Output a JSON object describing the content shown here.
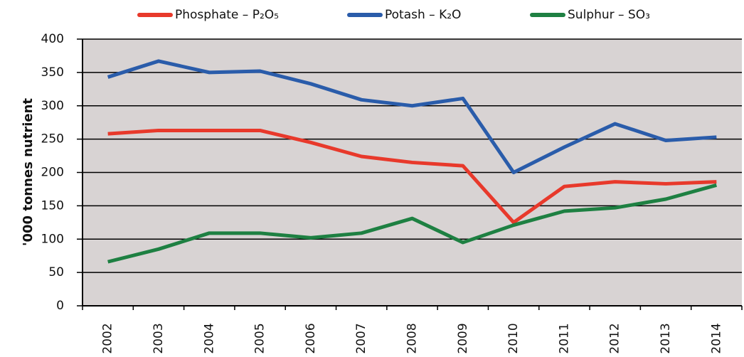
{
  "chart_data": {
    "type": "line",
    "y_label": "'000 tonnes nutrient",
    "categories": [
      "2002",
      "2003",
      "2004",
      "2005",
      "2006",
      "2007",
      "2008",
      "2009",
      "2010",
      "2011",
      "2012",
      "2013",
      "2014"
    ],
    "series": [
      {
        "name": "Phosphate – P₂O₅",
        "color": "#e8392b",
        "values": [
          258,
          263,
          263,
          263,
          245,
          224,
          215,
          210,
          125,
          179,
          186,
          183,
          186
        ]
      },
      {
        "name": "Potash – K₂O",
        "color": "#2a5caa",
        "values": [
          343,
          367,
          350,
          352,
          333,
          309,
          300,
          311,
          200,
          238,
          273,
          248,
          253
        ]
      },
      {
        "name": "Sulphur – SO₃",
        "color": "#1e8042",
        "values": [
          66,
          85,
          109,
          109,
          102,
          109,
          131,
          95,
          121,
          142,
          147,
          160,
          181
        ]
      }
    ],
    "ylim": [
      0,
      400
    ],
    "yticks": [
      0,
      50,
      100,
      150,
      200,
      250,
      300,
      350,
      400
    ],
    "grid": true
  }
}
